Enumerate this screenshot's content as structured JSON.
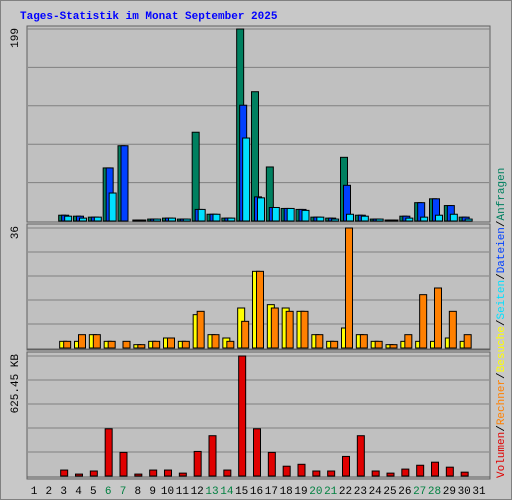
{
  "chart_data": {
    "type": "bar",
    "title": "Tages-Statistik im Monat September 2025",
    "categories": [
      "1",
      "2",
      "3",
      "4",
      "5",
      "6",
      "7",
      "8",
      "9",
      "10",
      "11",
      "12",
      "13",
      "14",
      "15",
      "16",
      "17",
      "18",
      "19",
      "20",
      "21",
      "22",
      "23",
      "24",
      "25",
      "26",
      "27",
      "28",
      "29",
      "30",
      "31"
    ],
    "highlight": {
      "color": "#008040",
      "categories": [
        "6",
        "7",
        "13",
        "14",
        "20",
        "21",
        "27",
        "28"
      ]
    },
    "legend_separator": "/",
    "grid": true,
    "panels": [
      {
        "ylim": [
          0,
          199
        ],
        "yticks": [
          199
        ],
        "series": [
          {
            "name": "Anfragen",
            "color": "#008060",
            "values": [
              0,
              0,
              6,
              5,
              4,
              55,
              78,
              1,
              2,
              3,
              2,
              92,
              7,
              3,
              199,
              134,
              56,
              13,
              12,
              4,
              3,
              66,
              6,
              2,
              1,
              5,
              19,
              23,
              16,
              4,
              0
            ]
          },
          {
            "name": "Dateien",
            "color": "#0040ff",
            "values": [
              0,
              0,
              6,
              5,
              4,
              55,
              78,
              1,
              2,
              3,
              2,
              12,
              7,
              3,
              120,
              25,
              14,
              13,
              12,
              4,
              3,
              37,
              6,
              2,
              1,
              5,
              19,
              23,
              16,
              4,
              0
            ]
          },
          {
            "name": "Seiten",
            "color": "#00e0ff",
            "values": [
              0,
              0,
              5,
              3,
              4,
              29,
              0,
              1,
              2,
              3,
              2,
              12,
              7,
              3,
              86,
              24,
              14,
              13,
              11,
              4,
              2,
              7,
              5,
              2,
              1,
              3,
              4,
              6,
              7,
              2,
              0
            ]
          }
        ]
      },
      {
        "ylim": [
          0,
          36
        ],
        "yticks": [
          36
        ],
        "series": [
          {
            "name": "Besuche",
            "color": "#ffff00",
            "values": [
              0,
              0,
              2,
              2,
              4,
              2,
              0,
              1,
              2,
              3,
              2,
              10,
              4,
              3,
              12,
              23,
              13,
              12,
              11,
              4,
              2,
              6,
              4,
              2,
              1,
              2,
              2,
              2,
              3,
              2,
              0
            ]
          },
          {
            "name": "Rechner",
            "color": "#ff8000",
            "values": [
              0,
              0,
              2,
              4,
              4,
              2,
              2,
              1,
              2,
              3,
              2,
              11,
              4,
              2,
              8,
              23,
              12,
              11,
              11,
              4,
              2,
              36,
              4,
              2,
              1,
              4,
              16,
              18,
              11,
              4,
              0
            ]
          }
        ]
      },
      {
        "ylim": [
          0,
          625.45
        ],
        "yticks": [
          {
            "value": 625.45,
            "label": "625.45 KB"
          }
        ],
        "series": [
          {
            "name": "Volumen",
            "color": "#e00000",
            "values": [
              0,
              0,
              31,
              10,
              26,
              246,
              123,
              10,
              31,
              31,
              15,
              128,
              210,
              31,
              625.45,
              246,
              123,
              51,
              61,
              26,
              26,
              102,
              210,
              26,
              15,
              36,
              56,
              72,
              46,
              20,
              0
            ]
          }
        ]
      }
    ]
  }
}
